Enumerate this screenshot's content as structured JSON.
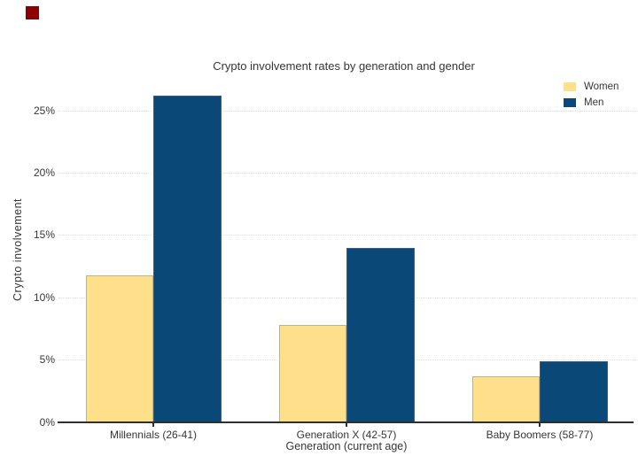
{
  "window": {
    "background_color": "#ffffff",
    "recording_indicator_color": "#8b0000"
  },
  "chart_data": {
    "type": "bar",
    "title": "Crypto involvement rates by generation and gender",
    "xlabel": "Generation (current age)",
    "ylabel": "Crypto involvement",
    "categories": [
      "Millennials (26-41)",
      "Generation X (42-57)",
      "Baby Boomers (58-77)"
    ],
    "series": [
      {
        "name": "Women",
        "color": "#ffe08a",
        "values": [
          11.8,
          7.8,
          3.7
        ]
      },
      {
        "name": "Men",
        "color": "#0a4878",
        "values": [
          26.2,
          14.0,
          4.9
        ]
      }
    ],
    "ylim": [
      0,
      27.5
    ],
    "ytick_values": [
      0,
      5,
      10,
      15,
      20,
      25
    ],
    "ytick_labels": [
      "0%",
      "5%",
      "10%",
      "15%",
      "20%",
      "25%"
    ],
    "grid": "horizontal-dotted",
    "gridline_color": "#dddddd",
    "axis_line_color": "#2f2f2f",
    "text_color": "#363636",
    "legend_position": "top-right"
  }
}
